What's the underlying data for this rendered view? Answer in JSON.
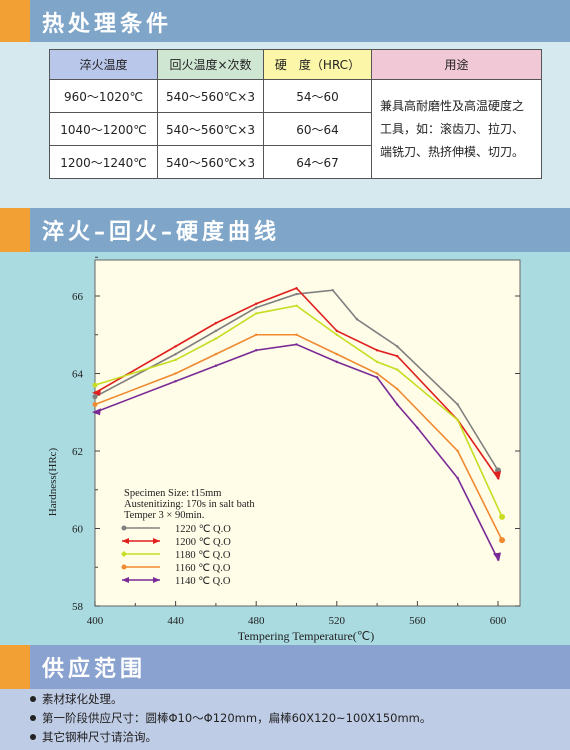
{
  "sections": {
    "heat_treatment_title": "热处理条件",
    "curve_title": "淬火–回火–硬度曲线",
    "supply_title": "供应范围"
  },
  "table": {
    "headers": [
      "淬火温度",
      "回火温度×次数",
      "硬　度（HRC）",
      "用途"
    ],
    "rows": [
      [
        "960～1020℃",
        "540～560℃×3",
        "54～60"
      ],
      [
        "1040～1200℃",
        "540～560℃×3",
        "60～64"
      ],
      [
        "1200～1240℃",
        "540～560℃×3",
        "64～67"
      ]
    ],
    "usage_lines": [
      "兼具高耐磨性及高温硬度之",
      "工具，如：滚齿刀、拉刀、",
      "端铣刀、热挤伸模、切刀。"
    ]
  },
  "chart_data": {
    "type": "line",
    "xlabel": "Tempering Temperature(℃)",
    "ylabel": "Hardness(HRc)",
    "xlim": [
      400,
      620
    ],
    "ylim": [
      58,
      67.5
    ],
    "xticks": [
      400,
      440,
      480,
      520,
      560,
      600
    ],
    "yticks": [
      58,
      60,
      62,
      64,
      66
    ],
    "annotations": [
      "Specimen Size: t15mm",
      "Austenitizing: 170s in salt bath",
      "Temper 3 × 90min."
    ],
    "legend_position": "lower-left",
    "series": [
      {
        "name": "1220 ℃ Q.O",
        "color": "#808080",
        "marker": "dot",
        "x": [
          400,
          440,
          460,
          480,
          500,
          518,
          530,
          550,
          580,
          600
        ],
        "y": [
          63.4,
          64.5,
          65.1,
          65.7,
          66.05,
          66.15,
          65.4,
          64.7,
          63.2,
          61.5
        ]
      },
      {
        "name": "1200 ℃ Q.O",
        "color": "#e01f1f",
        "marker": "arrow",
        "x": [
          400,
          440,
          460,
          480,
          500,
          520,
          540,
          550,
          580,
          600
        ],
        "y": [
          63.5,
          64.7,
          65.3,
          65.8,
          66.2,
          65.1,
          64.6,
          64.45,
          62.8,
          61.3
        ]
      },
      {
        "name": "1180 ℃ Q.O",
        "color": "#c8dd22",
        "marker": "diamond",
        "x": [
          400,
          440,
          460,
          480,
          500,
          520,
          540,
          550,
          580,
          602
        ],
        "y": [
          63.7,
          64.35,
          64.9,
          65.55,
          65.75,
          65.0,
          64.3,
          64.1,
          62.8,
          60.3
        ]
      },
      {
        "name": "1160 ℃ Q.O",
        "color": "#f08a30",
        "marker": "dot",
        "x": [
          400,
          440,
          460,
          480,
          500,
          520,
          540,
          550,
          580,
          602
        ],
        "y": [
          63.2,
          64.0,
          64.5,
          65.0,
          65.0,
          64.5,
          64.0,
          63.6,
          62.0,
          59.7
        ]
      },
      {
        "name": "1140 ℃ Q.O",
        "color": "#7a2a96",
        "marker": "arrow",
        "x": [
          400,
          440,
          460,
          480,
          500,
          520,
          540,
          550,
          560,
          580,
          600
        ],
        "y": [
          63.0,
          63.8,
          64.2,
          64.6,
          64.75,
          64.3,
          63.9,
          63.2,
          62.6,
          61.3,
          59.2
        ]
      }
    ]
  },
  "supply": {
    "items": [
      "素材球化处理。",
      "第一阶段供应尺寸：圆棒Φ10～Φ120mm，扁棒60X120~100X150mm。",
      "其它钢种尺寸请洽询。"
    ]
  }
}
